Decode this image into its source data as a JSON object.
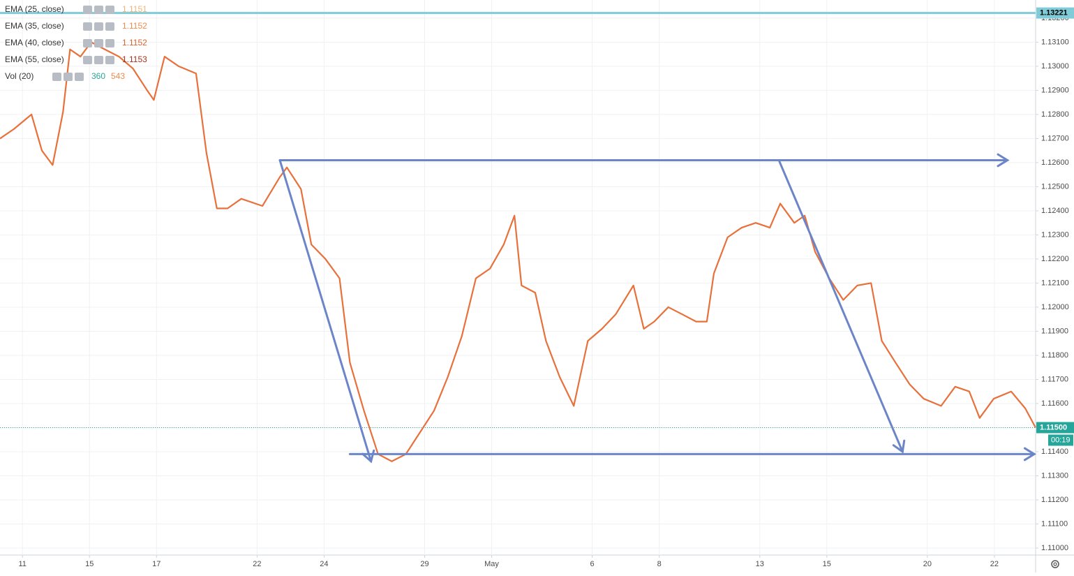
{
  "chart_data": {
    "type": "line",
    "xlim": [
      -0.67,
      30.23
    ],
    "ylim": [
      1.10971,
      1.13275
    ],
    "grid": true,
    "xticks": [
      {
        "value": 0,
        "label": "11"
      },
      {
        "value": 2,
        "label": "15"
      },
      {
        "value": 4,
        "label": "17"
      },
      {
        "value": 7,
        "label": "22"
      },
      {
        "value": 9,
        "label": "24"
      },
      {
        "value": 12,
        "label": "29"
      },
      {
        "value": 14,
        "label": "May"
      },
      {
        "value": 17,
        "label": "6"
      },
      {
        "value": 19,
        "label": "8"
      },
      {
        "value": 22,
        "label": "13"
      },
      {
        "value": 24,
        "label": "15"
      },
      {
        "value": 27,
        "label": "20"
      },
      {
        "value": 29,
        "label": "22"
      }
    ],
    "yticks": [
      {
        "value": 1.11,
        "label": "1.11000"
      },
      {
        "value": 1.111,
        "label": "1.11100"
      },
      {
        "value": 1.112,
        "label": "1.11200"
      },
      {
        "value": 1.113,
        "label": "1.11300"
      },
      {
        "value": 1.114,
        "label": "1.11400"
      },
      {
        "value": 1.115,
        "label": "1.11500"
      },
      {
        "value": 1.116,
        "label": "1.11600"
      },
      {
        "value": 1.117,
        "label": "1.11700"
      },
      {
        "value": 1.118,
        "label": "1.11800"
      },
      {
        "value": 1.119,
        "label": "1.11900"
      },
      {
        "value": 1.12,
        "label": "1.12000"
      },
      {
        "value": 1.121,
        "label": "1.12100"
      },
      {
        "value": 1.122,
        "label": "1.12200"
      },
      {
        "value": 1.123,
        "label": "1.12300"
      },
      {
        "value": 1.124,
        "label": "1.12400"
      },
      {
        "value": 1.125,
        "label": "1.12500"
      },
      {
        "value": 1.126,
        "label": "1.12600"
      },
      {
        "value": 1.127,
        "label": "1.12700"
      },
      {
        "value": 1.128,
        "label": "1.12800"
      },
      {
        "value": 1.129,
        "label": "1.12900"
      },
      {
        "value": 1.13,
        "label": "1.13000"
      },
      {
        "value": 1.131,
        "label": "1.13100"
      },
      {
        "value": 1.132,
        "label": "1.13200"
      }
    ],
    "series": [
      {
        "color": "#e8703a",
        "x": [
          -0.67,
          -0.25,
          0.27,
          0.58,
          0.9,
          1.21,
          1.42,
          1.73,
          2.05,
          2.46,
          2.88,
          3.3,
          3.72,
          3.92,
          4.24,
          4.66,
          5.18,
          5.49,
          5.8,
          6.12,
          6.53,
          7.16,
          7.68,
          7.89,
          8.31,
          8.62,
          9.04,
          9.46,
          9.77,
          10.19,
          10.61,
          11.02,
          11.44,
          11.86,
          12.28,
          12.69,
          13.11,
          13.53,
          13.95,
          14.36,
          14.68,
          14.89,
          15.3,
          15.62,
          16.03,
          16.45,
          16.87,
          17.29,
          17.7,
          18.23,
          18.54,
          18.85,
          19.27,
          19.69,
          20.1,
          20.42,
          20.63,
          21.04,
          21.46,
          21.88,
          22.3,
          22.61,
          23.03,
          23.34,
          23.65,
          24.07,
          24.49,
          24.91,
          25.32,
          25.64,
          26.05,
          26.47,
          26.89,
          27.41,
          27.83,
          28.25,
          28.56,
          28.98,
          29.5,
          29.92,
          30.23
        ],
        "values": [
          1.127,
          1.1274,
          1.128,
          1.1265,
          1.1259,
          1.1281,
          1.1307,
          1.1304,
          1.131,
          1.1307,
          1.1304,
          1.1299,
          1.129,
          1.1286,
          1.1304,
          1.13,
          1.1297,
          1.1264,
          1.1241,
          1.1241,
          1.1245,
          1.1242,
          1.1254,
          1.1258,
          1.1249,
          1.1226,
          1.122,
          1.1212,
          1.1177,
          1.1157,
          1.1139,
          1.1136,
          1.1139,
          1.1148,
          1.1157,
          1.1171,
          1.1188,
          1.1212,
          1.1216,
          1.1226,
          1.1238,
          1.1209,
          1.1206,
          1.1186,
          1.1171,
          1.1159,
          1.1186,
          1.1191,
          1.1197,
          1.1209,
          1.1191,
          1.1194,
          1.12,
          1.1197,
          1.1194,
          1.1194,
          1.1214,
          1.1229,
          1.1233,
          1.1235,
          1.1233,
          1.1243,
          1.1235,
          1.1238,
          1.1223,
          1.1212,
          1.1203,
          1.1209,
          1.121,
          1.1186,
          1.1177,
          1.1168,
          1.1162,
          1.1159,
          1.1167,
          1.1165,
          1.1154,
          1.1162,
          1.1165,
          1.1158,
          1.115
        ]
      }
    ],
    "indicators": [
      {
        "label": "EMA (25, close)",
        "value": 1.1151,
        "color": "#f6b27a"
      },
      {
        "label": "EMA (35, close)",
        "value": 1.1152,
        "color": "#f08a4b"
      },
      {
        "label": "EMA (40, close)",
        "value": 1.1152,
        "color": "#e0602e"
      },
      {
        "label": "EMA (55, close)",
        "value": 1.1153,
        "color": "#a5321d"
      }
    ],
    "volume_indicator": {
      "label": "Vol (20)",
      "values": [
        360,
        543
      ],
      "colors": [
        "#26a69a",
        "#f08a4b"
      ]
    },
    "level_line": {
      "value": 1.13221,
      "color": "#7fcbd8"
    },
    "price_line": {
      "value": 1.115,
      "label": "1.11500",
      "color": "#26a69a"
    },
    "countdown": "00:19",
    "drawings": [
      {
        "x": [
          7.68,
          29.39
        ],
        "y": [
          1.1261,
          1.1261
        ],
        "color": "#6c85c8"
      },
      {
        "x": [
          9.77,
          30.19
        ],
        "y": [
          1.1139,
          1.1139
        ],
        "color": "#6c85c8"
      },
      {
        "x": [
          7.68,
          10.4
        ],
        "y": [
          1.1261,
          1.1136
        ],
        "color": "#6c85c8"
      },
      {
        "x": [
          22.57,
          26.26
        ],
        "y": [
          1.1261,
          1.114
        ],
        "color": "#6c85c8"
      }
    ]
  }
}
